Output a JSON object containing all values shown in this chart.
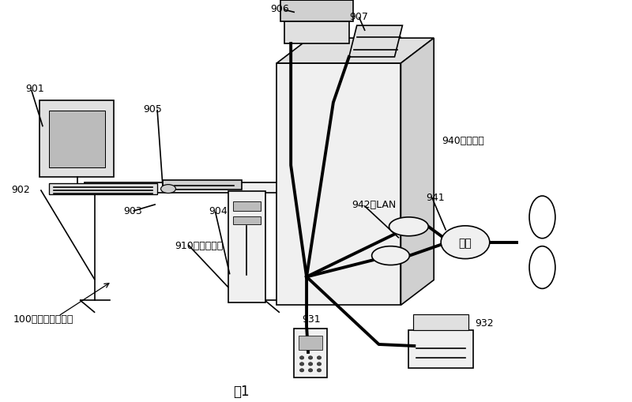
{
  "bg_color": "#ffffff",
  "lc": "#000000",
  "lw": 1.2,
  "lw2": 2.8,
  "fc_light": "#f0f0f0",
  "fc_mid": "#e0e0e0",
  "fc_dark": "#d0d0d0",
  "gateway_text": "网关",
  "t_910": "910：系统单元",
  "t_100": "100：数据变换装置",
  "t_940": "940：因特网",
  "t_942": "942：LAN",
  "t_fig": "图1",
  "fs": 9,
  "fs_fig": 12
}
